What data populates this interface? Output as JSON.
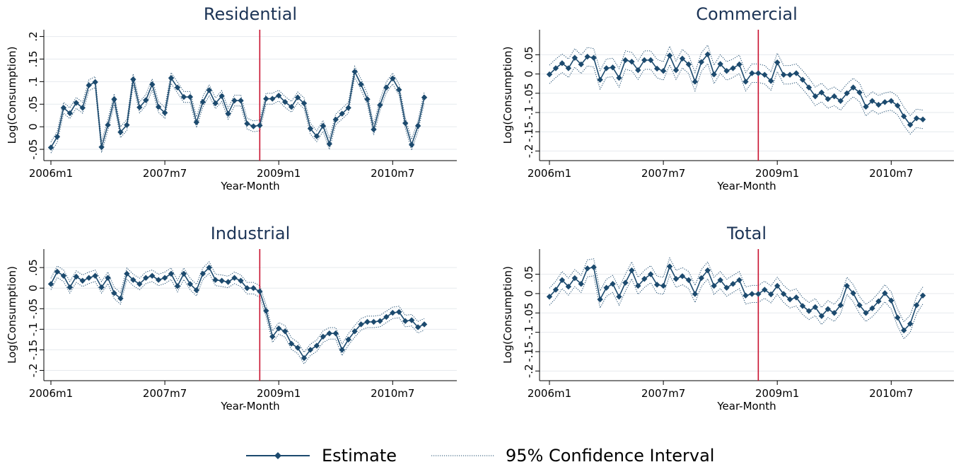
{
  "colors": {
    "estimate": "#1c4a6e",
    "ci": "#1c4a6e",
    "event_line": "#c8102e",
    "grid": "#e6eaee",
    "title": "#1c3456"
  },
  "legend": {
    "estimate_label": "Estimate",
    "ci_label": "95% Confidence Interval"
  },
  "chart_data": [
    {
      "type": "line",
      "title": "Residential",
      "xlabel": "Year-Month",
      "ylabel": "Log(Consumption)",
      "x_start": "2006m1",
      "x_ticks": [
        "2006m1",
        "2007m7",
        "2009m1",
        "2010m7"
      ],
      "y_ticks": [
        "-.05",
        "0",
        ".05",
        ".1",
        ".15",
        ".2"
      ],
      "ylim": [
        -0.075,
        0.215
      ],
      "event_x": "2008m10",
      "grid": true,
      "series": [
        {
          "name": "Estimate",
          "values": [
            -0.046,
            -0.022,
            0.042,
            0.03,
            0.053,
            0.042,
            0.092,
            0.099,
            -0.045,
            0.004,
            0.061,
            -0.012,
            0.004,
            0.105,
            0.043,
            0.059,
            0.094,
            0.044,
            0.031,
            0.108,
            0.087,
            0.066,
            0.066,
            0.01,
            0.055,
            0.081,
            0.052,
            0.068,
            0.029,
            0.058,
            0.058,
            0.007,
            0.001,
            0.003,
            0.062,
            0.062,
            0.069,
            0.055,
            0.044,
            0.065,
            0.052,
            -0.004,
            -0.021,
            0.002,
            -0.038,
            0.016,
            0.029,
            0.042,
            0.122,
            0.094,
            0.061,
            -0.006,
            0.048,
            0.087,
            0.107,
            0.082,
            0.008,
            -0.04,
            0.002,
            0.065
          ]
        },
        {
          "name": "95% Confidence Interval",
          "half_width": 0.012
        }
      ]
    },
    {
      "type": "line",
      "title": "Commercial",
      "xlabel": "Year-Month",
      "ylabel": "Log(Consumption)",
      "x_start": "2006m1",
      "x_ticks": [
        "2006m1",
        "2007m7",
        "2009m1",
        "2010m7"
      ],
      "y_ticks": [
        "-.2",
        "-.15",
        "-.1",
        "-.05",
        "0",
        ".05"
      ],
      "ylim": [
        -0.225,
        0.115
      ],
      "event_x": "2008m10",
      "grid": true,
      "series": [
        {
          "name": "Estimate",
          "values": [
            -0.001,
            0.015,
            0.028,
            0.015,
            0.042,
            0.025,
            0.045,
            0.042,
            -0.015,
            0.015,
            0.017,
            -0.01,
            0.036,
            0.032,
            0.01,
            0.036,
            0.036,
            0.014,
            0.008,
            0.048,
            0.01,
            0.04,
            0.025,
            -0.02,
            0.031,
            0.051,
            -0.001,
            0.026,
            0.008,
            0.015,
            0.025,
            -0.02,
            0.002,
            0.002,
            -0.002,
            -0.018,
            0.03,
            -0.002,
            -0.002,
            0.002,
            -0.015,
            -0.035,
            -0.058,
            -0.048,
            -0.065,
            -0.058,
            -0.07,
            -0.05,
            -0.035,
            -0.048,
            -0.085,
            -0.07,
            -0.08,
            -0.073,
            -0.07,
            -0.082,
            -0.11,
            -0.132,
            -0.115,
            -0.118
          ]
        },
        {
          "name": "95% Confidence Interval",
          "half_width": 0.024
        }
      ]
    },
    {
      "type": "line",
      "title": "Industrial",
      "xlabel": "Year-Month",
      "ylabel": "Log(Consumption)",
      "x_start": "2006m1",
      "x_ticks": [
        "2006m1",
        "2007m7",
        "2009m1",
        "2010m7"
      ],
      "y_ticks": [
        "-.2",
        "-.15",
        "-.1",
        "-.05",
        "0",
        ".05"
      ],
      "ylim": [
        -0.225,
        0.095
      ],
      "event_x": "2008m10",
      "grid": true,
      "series": [
        {
          "name": "Estimate",
          "values": [
            0.01,
            0.04,
            0.03,
            0.002,
            0.028,
            0.018,
            0.025,
            0.03,
            0.002,
            0.025,
            -0.012,
            -0.025,
            0.035,
            0.02,
            0.01,
            0.025,
            0.03,
            0.02,
            0.025,
            0.035,
            0.005,
            0.035,
            0.01,
            -0.005,
            0.035,
            0.05,
            0.02,
            0.018,
            0.015,
            0.025,
            0.018,
            0.0,
            0.0,
            -0.008,
            -0.055,
            -0.118,
            -0.098,
            -0.105,
            -0.135,
            -0.145,
            -0.17,
            -0.15,
            -0.14,
            -0.118,
            -0.11,
            -0.11,
            -0.15,
            -0.125,
            -0.105,
            -0.088,
            -0.082,
            -0.082,
            -0.08,
            -0.07,
            -0.06,
            -0.058,
            -0.08,
            -0.078,
            -0.095,
            -0.088
          ]
        },
        {
          "name": "95% Confidence Interval",
          "half_width": 0.014
        }
      ]
    },
    {
      "type": "line",
      "title": "Total",
      "xlabel": "Year-Month",
      "ylabel": "Log(Consumption)",
      "x_start": "2006m1",
      "x_ticks": [
        "2006m1",
        "2007m7",
        "2009m1",
        "2010m7"
      ],
      "y_ticks": [
        "-.2",
        "-.15",
        "-.1",
        "-.05",
        "0",
        ".05"
      ],
      "ylim": [
        -0.225,
        0.115
      ],
      "event_x": "2008m10",
      "grid": true,
      "series": [
        {
          "name": "Estimate",
          "values": [
            -0.008,
            0.01,
            0.035,
            0.018,
            0.04,
            0.025,
            0.065,
            0.068,
            -0.015,
            0.015,
            0.025,
            -0.008,
            0.028,
            0.06,
            0.02,
            0.038,
            0.05,
            0.023,
            0.02,
            0.07,
            0.038,
            0.045,
            0.035,
            -0.001,
            0.04,
            0.06,
            0.02,
            0.035,
            0.015,
            0.025,
            0.035,
            -0.005,
            -0.001,
            -0.001,
            0.01,
            -0.002,
            0.02,
            -0.001,
            -0.015,
            -0.01,
            -0.032,
            -0.045,
            -0.035,
            -0.058,
            -0.04,
            -0.05,
            -0.03,
            0.02,
            0.001,
            -0.03,
            -0.05,
            -0.038,
            -0.02,
            0.001,
            -0.018,
            -0.062,
            -0.095,
            -0.078,
            -0.03,
            -0.005
          ]
        },
        {
          "name": "95% Confidence Interval",
          "half_width": 0.022
        }
      ]
    }
  ]
}
